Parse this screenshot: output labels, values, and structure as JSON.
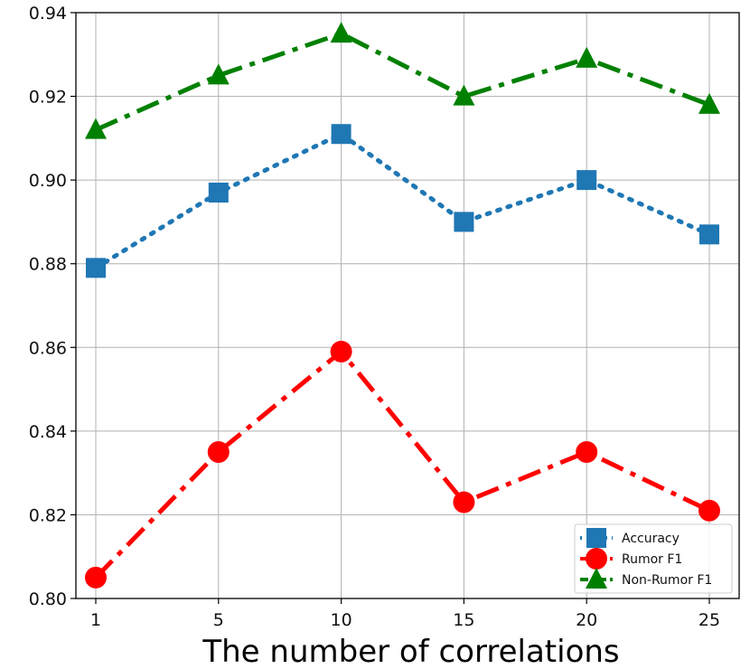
{
  "chart_data": {
    "type": "line",
    "title": "",
    "xlabel": "The number of correlations",
    "ylabel": "",
    "categories": [
      "1",
      "5",
      "10",
      "15",
      "20",
      "25"
    ],
    "ylim": [
      0.8,
      0.94
    ],
    "yticks": [
      0.8,
      0.82,
      0.84,
      0.86,
      0.88,
      0.9,
      0.92,
      0.94
    ],
    "ytick_labels": [
      "0.80",
      "0.82",
      "0.84",
      "0.86",
      "0.88",
      "0.90",
      "0.92",
      "0.94"
    ],
    "grid": true,
    "legend_position": "lower-right",
    "series": [
      {
        "name": "Accuracy",
        "values": [
          0.879,
          0.897,
          0.911,
          0.89,
          0.9,
          0.887
        ],
        "color": "#1f77b4",
        "marker": "square",
        "line_style": "dotted"
      },
      {
        "name": "Rumor F1",
        "values": [
          0.805,
          0.835,
          0.859,
          0.823,
          0.835,
          0.821
        ],
        "color": "#ff0000",
        "marker": "circle",
        "line_style": "dashdot"
      },
      {
        "name": "Non-Rumor F1",
        "values": [
          0.912,
          0.925,
          0.935,
          0.92,
          0.929,
          0.918
        ],
        "color": "#008000",
        "marker": "triangle",
        "line_style": "dashdot"
      }
    ]
  }
}
